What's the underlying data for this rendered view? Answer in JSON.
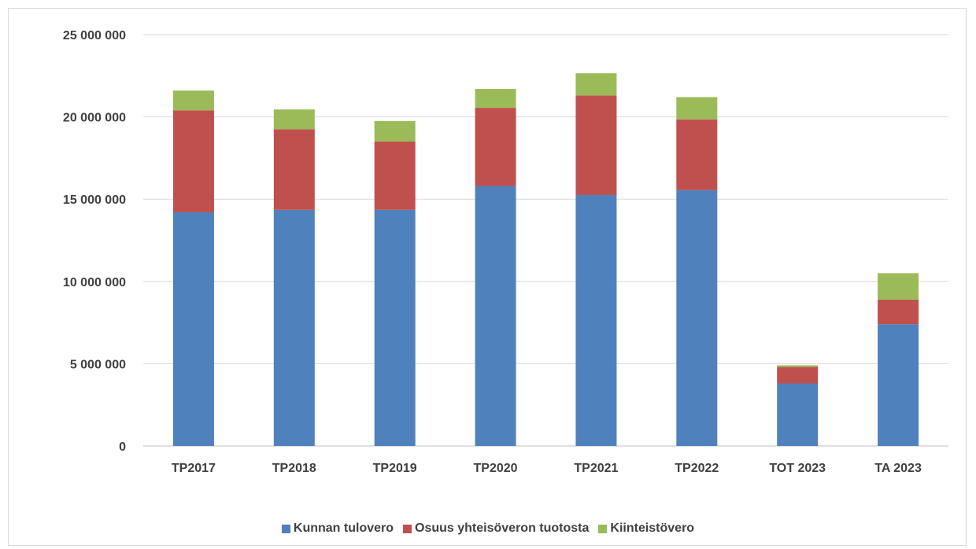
{
  "chart_data": {
    "type": "bar",
    "stacked": true,
    "categories": [
      "TP2017",
      "TP2018",
      "TP2019",
      "TP2020",
      "TP2021",
      "TP2022",
      "TOT 2023",
      "TA 2023"
    ],
    "series": [
      {
        "name": "Kunnan tulovero",
        "color": "#4f81bd",
        "values": [
          14200000,
          14350000,
          14350000,
          15800000,
          15250000,
          15550000,
          3800000,
          7400000
        ]
      },
      {
        "name": "Osuus yhteisöveron tuotosta",
        "color": "#c0504d",
        "values": [
          6200000,
          4900000,
          4150000,
          4750000,
          6050000,
          4300000,
          1000000,
          1500000
        ]
      },
      {
        "name": "Kiinteistövero",
        "color": "#9bbb59",
        "values": [
          1200000,
          1200000,
          1250000,
          1150000,
          1350000,
          1350000,
          100000,
          1600000
        ]
      }
    ],
    "ylim": [
      0,
      25000000
    ],
    "yticks": [
      0,
      5000000,
      10000000,
      15000000,
      20000000,
      25000000
    ],
    "ytick_labels": [
      "0",
      "5 000 000",
      "10 000 000",
      "15 000 000",
      "20 000 000",
      "25 000 000"
    ],
    "grid": true,
    "legend_position": "bottom"
  }
}
